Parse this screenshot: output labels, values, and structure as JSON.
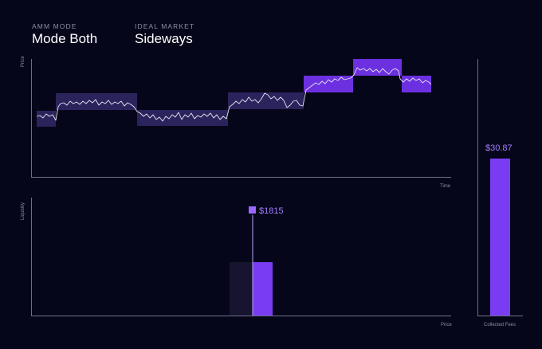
{
  "header": {
    "amm_mode_label": "AMM MODE",
    "amm_mode_value": "Mode Both",
    "market_label": "IDEAL MARKET",
    "market_value": "Sideways"
  },
  "colors": {
    "background": "#06061a",
    "accent": "#7a3cf2",
    "range_dim": "#2b245c",
    "range_bright": "#6c30e0",
    "axis": "#6f6f8a",
    "text_muted": "#8d8da6"
  },
  "price_chart": {
    "ylabel": "Price",
    "xlabel": "Time"
  },
  "liquidity_chart": {
    "ylabel": "Liquidity",
    "xlabel": "Price",
    "price_marker_label": "$1815"
  },
  "fees_chart": {
    "value_label": "$30.87",
    "xlabel": "Collected Fees"
  }
}
